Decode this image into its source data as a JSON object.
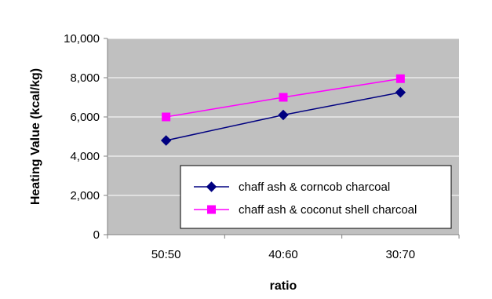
{
  "colors": {
    "plot_background": "#C0C0C0",
    "gridline": "#FFFFFF",
    "axis": "#808080",
    "text": "#000000",
    "legend_background": "#FFFFFF",
    "legend_border": "#000000"
  },
  "chart_data": {
    "type": "line",
    "title": "",
    "xlabel": "ratio",
    "ylabel": "Heating Value (kcal/kg)",
    "categories": [
      "50:50",
      "40:60",
      "30:70"
    ],
    "ylim": [
      0,
      10000
    ],
    "yticks": [
      0,
      2000,
      4000,
      6000,
      8000,
      10000
    ],
    "ytick_labels": [
      "0",
      "2,000",
      "4,000",
      "6,000",
      "8,000",
      "10,000"
    ],
    "grid": true,
    "legend_position": "bottom-right",
    "series": [
      {
        "name": "chaff ash & corncob charcoal",
        "values": [
          4800,
          6100,
          7250
        ],
        "color": "#000080",
        "marker": "diamond"
      },
      {
        "name": "chaff ash & coconut shell charcoal",
        "values": [
          6000,
          7000,
          7950
        ],
        "color": "#FF00FF",
        "marker": "square"
      }
    ]
  }
}
